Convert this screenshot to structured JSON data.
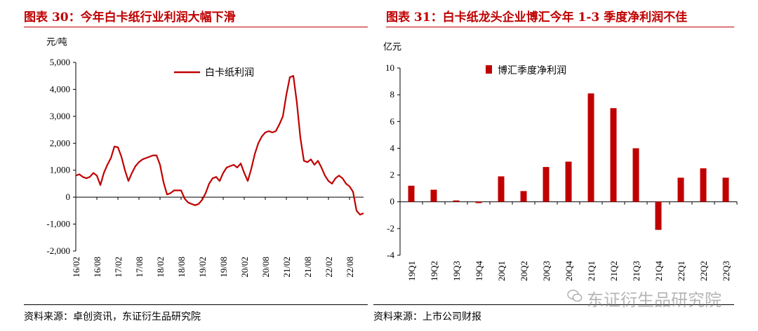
{
  "left_panel": {
    "title": "图表 30：今年白卡纸行业利润大幅下滑",
    "source": "资料来源：卓创资讯，东证衍生品研究院"
  },
  "right_panel": {
    "title": "图表 31：白卡纸龙头企业博汇今年 1-3 季度净利润不佳",
    "source": "资料来源：上市公司财报"
  },
  "watermark": "东证衍生品研究院",
  "chart_data": [
    {
      "type": "line",
      "unit_label": "元/吨",
      "xlabel": "",
      "ylabel": "元/吨",
      "ylim": [
        -2000,
        5000
      ],
      "yticks": [
        -2000,
        -1000,
        0,
        1000,
        2000,
        3000,
        4000,
        5000
      ],
      "ytick_labels": [
        "-2,000",
        "-1,000",
        "0",
        "1,000",
        "2,000",
        "3,000",
        "4,000",
        "5,000"
      ],
      "xlim": [
        "2016-02",
        "2022-12"
      ],
      "xtick_labels": [
        "16/02",
        "16/08",
        "17/02",
        "17/08",
        "18/02",
        "18/08",
        "19/02",
        "19/08",
        "20/02",
        "20/08",
        "21/02",
        "21/08",
        "22/02",
        "22/08"
      ],
      "legend": "top-center",
      "color": "#c00000",
      "series": [
        {
          "name": "白卡纸利润",
          "x": [
            "2016-02",
            "2016-03",
            "2016-04",
            "2016-05",
            "2016-06",
            "2016-07",
            "2016-08",
            "2016-09",
            "2016-10",
            "2016-11",
            "2016-12",
            "2017-01",
            "2017-02",
            "2017-03",
            "2017-04",
            "2017-05",
            "2017-06",
            "2017-07",
            "2017-08",
            "2017-09",
            "2017-10",
            "2017-11",
            "2017-12",
            "2018-01",
            "2018-02",
            "2018-03",
            "2018-04",
            "2018-05",
            "2018-06",
            "2018-07",
            "2018-08",
            "2018-09",
            "2018-10",
            "2018-11",
            "2018-12",
            "2019-01",
            "2019-02",
            "2019-03",
            "2019-04",
            "2019-05",
            "2019-06",
            "2019-07",
            "2019-08",
            "2019-09",
            "2019-10",
            "2019-11",
            "2019-12",
            "2020-01",
            "2020-02",
            "2020-03",
            "2020-04",
            "2020-05",
            "2020-06",
            "2020-07",
            "2020-08",
            "2020-09",
            "2020-10",
            "2020-11",
            "2020-12",
            "2021-01",
            "2021-02",
            "2021-03",
            "2021-04",
            "2021-05",
            "2021-06",
            "2021-07",
            "2021-08",
            "2021-09",
            "2021-10",
            "2021-11",
            "2021-12",
            "2022-01",
            "2022-02",
            "2022-03",
            "2022-04",
            "2022-05",
            "2022-06",
            "2022-07",
            "2022-08",
            "2022-09",
            "2022-10",
            "2022-11",
            "2022-12"
          ],
          "values": [
            800,
            850,
            750,
            700,
            750,
            900,
            800,
            450,
            900,
            1200,
            1450,
            1880,
            1850,
            1500,
            1000,
            600,
            900,
            1150,
            1300,
            1400,
            1450,
            1500,
            1550,
            1550,
            1200,
            550,
            100,
            150,
            250,
            250,
            250,
            -50,
            -200,
            -250,
            -300,
            -250,
            -100,
            150,
            500,
            700,
            750,
            600,
            900,
            1100,
            1150,
            1200,
            1100,
            1250,
            900,
            600,
            1050,
            1600,
            2000,
            2250,
            2400,
            2450,
            2400,
            2450,
            2700,
            3000,
            3800,
            4450,
            4500,
            3500,
            2200,
            1350,
            1300,
            1400,
            1200,
            1350,
            1100,
            800,
            600,
            500,
            700,
            800,
            700,
            500,
            400,
            200,
            -500,
            -650,
            -600
          ]
        }
      ]
    },
    {
      "type": "bar",
      "unit_label": "亿元",
      "xlabel": "",
      "ylabel": "亿元",
      "ylim": [
        -4,
        10
      ],
      "yticks": [
        -4,
        -2,
        0,
        2,
        4,
        6,
        8,
        10
      ],
      "ytick_labels": [
        "-4",
        "-2",
        "0",
        "2",
        "4",
        "6",
        "8",
        "10"
      ],
      "legend": "top-center",
      "color": "#c00000",
      "categories": [
        "19Q1",
        "19Q2",
        "19Q3",
        "19Q4",
        "20Q1",
        "20Q2",
        "20Q3",
        "20Q4",
        "21Q1",
        "21Q2",
        "21Q3",
        "21Q4",
        "22Q1",
        "22Q2",
        "22Q3"
      ],
      "series": [
        {
          "name": "博汇季度净利润",
          "values": [
            1.2,
            0.9,
            0.1,
            -0.1,
            1.9,
            0.8,
            2.6,
            3.0,
            8.1,
            7.0,
            4.0,
            -2.1,
            1.8,
            2.5,
            1.8
          ]
        }
      ]
    }
  ]
}
